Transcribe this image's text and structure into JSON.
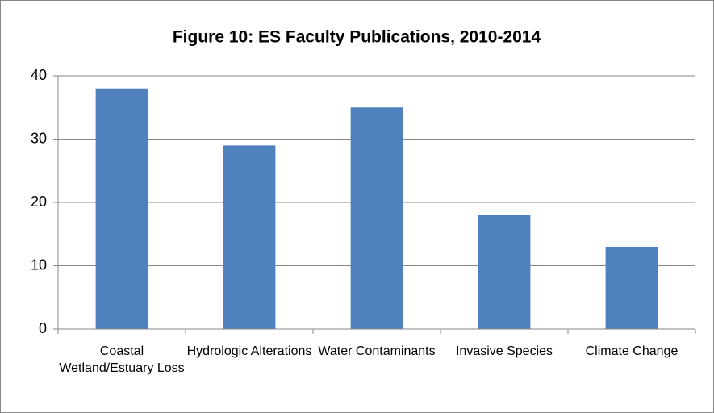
{
  "chart_data": {
    "type": "bar",
    "title": "Figure 10: ES Faculty Publications, 2010-2014",
    "categories": [
      "Coastal Wetland/Estuary Loss",
      "Hydrologic Alterations",
      "Water Contaminants",
      "Invasive Species",
      "Climate Change"
    ],
    "values": [
      38,
      29,
      35,
      18,
      13
    ],
    "color": "#4f81bd",
    "ylim": [
      0,
      40
    ],
    "yticks": [
      0,
      10,
      20,
      30,
      40
    ],
    "grid": true
  }
}
